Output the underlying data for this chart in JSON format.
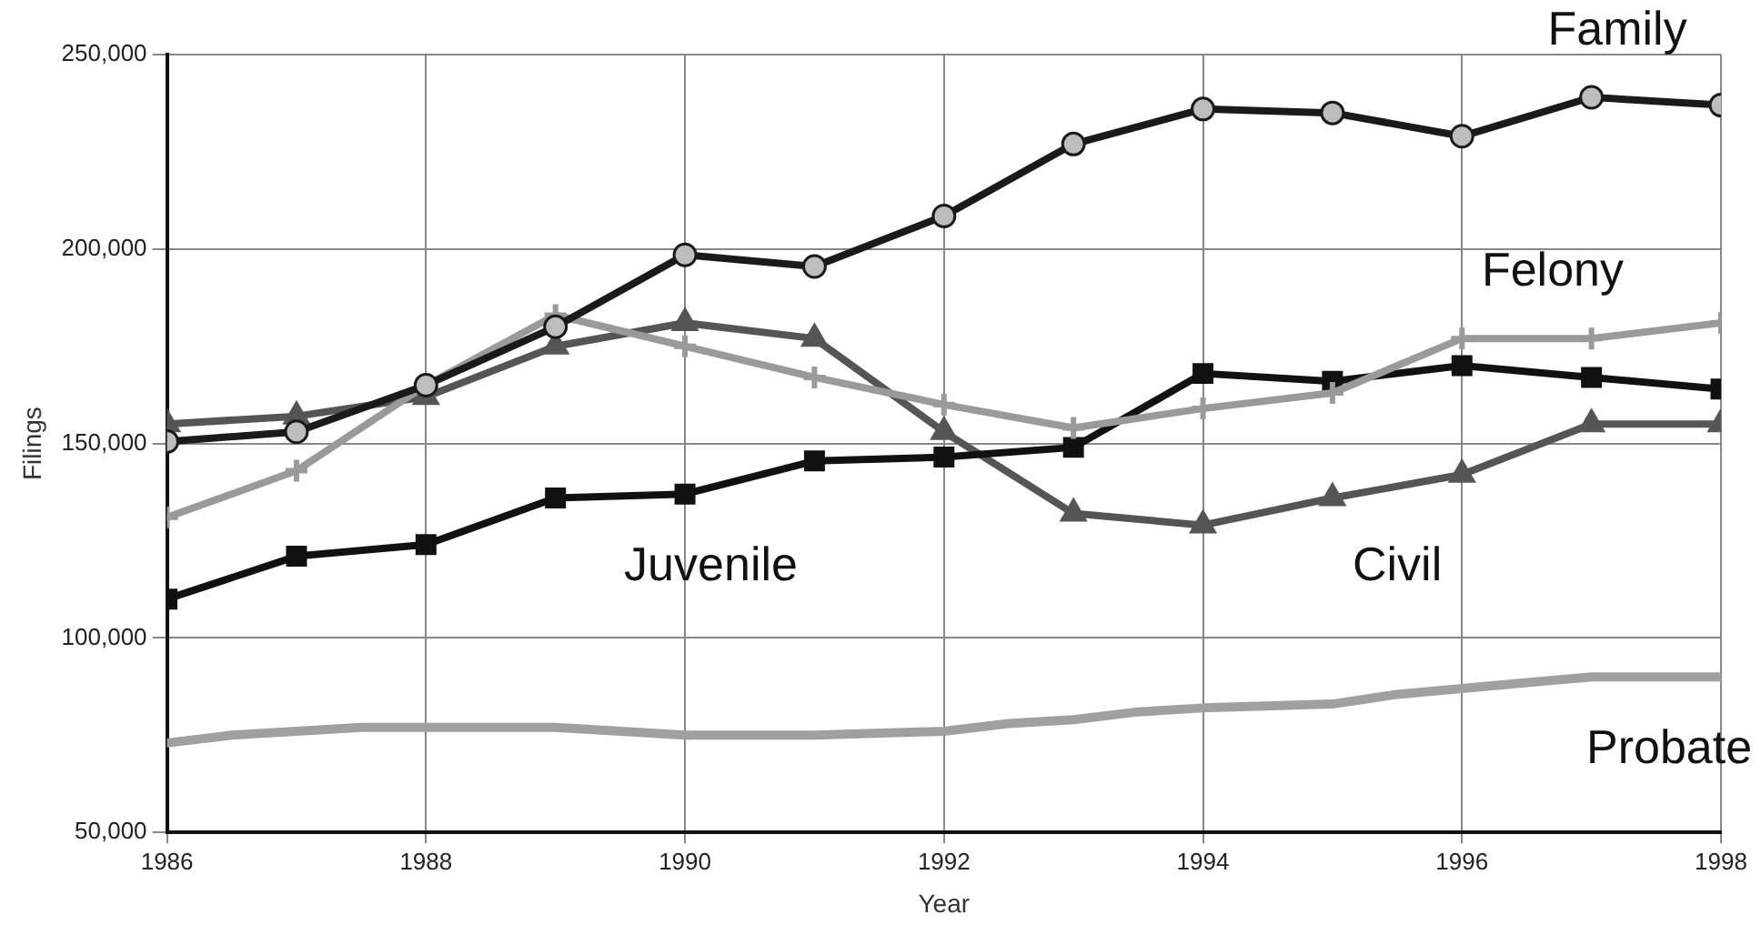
{
  "chart_data": {
    "type": "line",
    "xlabel": "Year",
    "ylabel": "Filings",
    "x": [
      1986,
      1987,
      1988,
      1989,
      1990,
      1991,
      1992,
      1993,
      1994,
      1995,
      1996,
      1997,
      1998
    ],
    "xlim": [
      1986,
      1998
    ],
    "xticks": [
      1986,
      1988,
      1990,
      1992,
      1994,
      1996,
      1998
    ],
    "ylim": [
      50000,
      250000
    ],
    "yticks": [
      {
        "value": 50000,
        "label": "50,000"
      },
      {
        "value": 100000,
        "label": "100,000"
      },
      {
        "value": 150000,
        "label": "150,000"
      },
      {
        "value": 200000,
        "label": "200,000"
      },
      {
        "value": 250000,
        "label": "250,000"
      }
    ],
    "grid": true,
    "legend": false,
    "line_style": "solid",
    "series": [
      {
        "name": "Family",
        "color": "#1a1a1a",
        "marker": "circle",
        "values": [
          150500,
          153000,
          165000,
          180000,
          198500,
          195500,
          208500,
          227000,
          236000,
          235000,
          229000,
          239000,
          237000
        ]
      },
      {
        "name": "Felony",
        "color": "#9a9a9a",
        "marker": "cross",
        "values": [
          131000,
          143000,
          165000,
          183000,
          175000,
          167000,
          160000,
          154000,
          159000,
          163000,
          177000,
          177000,
          181000
        ]
      },
      {
        "name": "Juvenile",
        "color": "#111111",
        "marker": "square",
        "values": [
          110000,
          121000,
          124000,
          136000,
          137000,
          145500,
          146500,
          149000,
          168000,
          166000,
          170000,
          167000,
          164000
        ]
      },
      {
        "name": "Civil",
        "color": "#555555",
        "marker": "triangle",
        "values": [
          155000,
          157000,
          162000,
          175000,
          181000,
          177000,
          153000,
          132000,
          129000,
          136000,
          142000,
          155000,
          155000
        ]
      },
      {
        "name": "Probate",
        "color": "#a0a0a0",
        "marker": "none",
        "x": [
          1986,
          1986.5,
          1987,
          1987.5,
          1988,
          1989,
          1989.5,
          1990,
          1991,
          1992,
          1992.5,
          1993,
          1993.5,
          1994,
          1995,
          1995.5,
          1996,
          1996.5,
          1997,
          1998
        ],
        "values": [
          73000,
          75000,
          76000,
          77000,
          77000,
          77000,
          76000,
          75000,
          75000,
          76000,
          78000,
          79000,
          81000,
          82000,
          83000,
          85500,
          87000,
          88500,
          90000,
          90000
        ]
      }
    ]
  }
}
